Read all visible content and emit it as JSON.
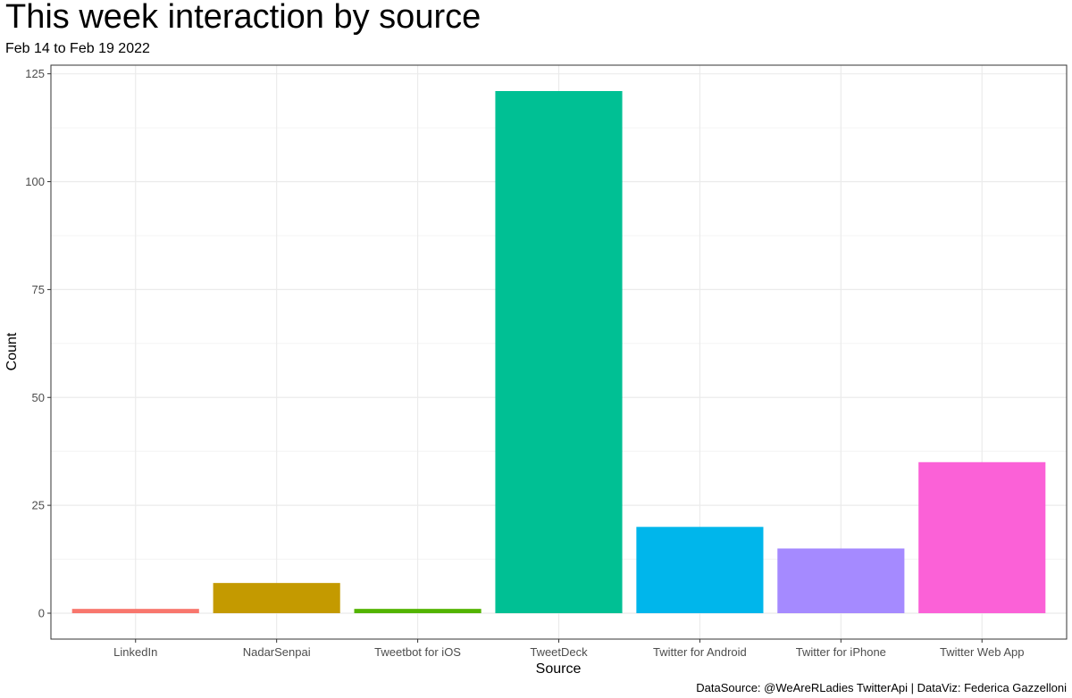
{
  "chart_data": {
    "type": "bar",
    "title": "This week interaction by source",
    "subtitle": "Feb 14 to Feb 19 2022",
    "caption": "DataSource: @WeAreRLadies TwitterApi | DataViz: Federica Gazzelloni",
    "xlabel": "Source",
    "ylabel": "Count",
    "categories": [
      "LinkedIn",
      "NadarSenpai",
      "Tweetbot for iOS",
      "TweetDeck",
      "Twitter for Android",
      "Twitter for iPhone",
      "Twitter Web App"
    ],
    "values": [
      1,
      7,
      1,
      121,
      20,
      15,
      35
    ],
    "colors": [
      "#F8766D",
      "#C49A00",
      "#53B400",
      "#00C094",
      "#00B6EB",
      "#A58AFF",
      "#FB61D7"
    ],
    "ylim": [
      -6,
      127
    ],
    "yticks": [
      0,
      25,
      50,
      75,
      100,
      125
    ],
    "grid": true,
    "legend": "none"
  }
}
